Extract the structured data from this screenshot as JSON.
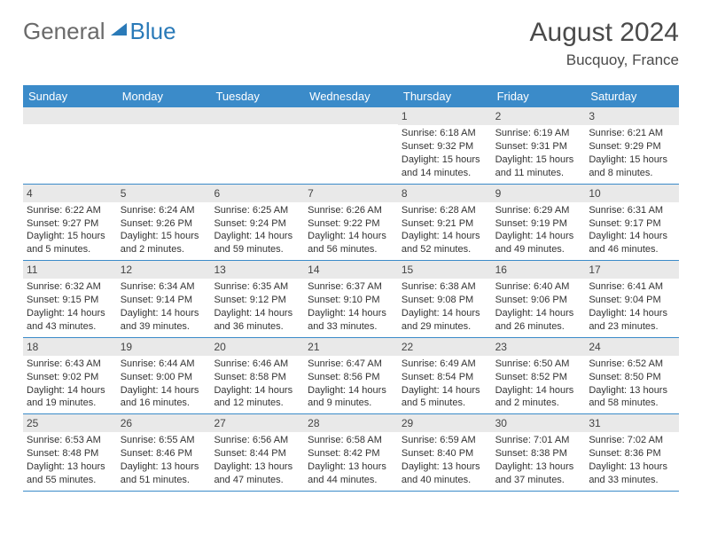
{
  "header": {
    "logo_part1": "General",
    "logo_part2": "Blue",
    "month_title": "August 2024",
    "location": "Bucquoy, France"
  },
  "colors": {
    "header_bar": "#3b8bc9",
    "daynum_bg": "#e9e9e9",
    "week_border": "#3b8bc9",
    "logo_gray": "#6a6a6a",
    "logo_blue": "#2a7ab8",
    "text": "#333333",
    "title": "#4a4a4a"
  },
  "typography": {
    "title_fontsize": 30,
    "location_fontsize": 17,
    "weekday_fontsize": 13,
    "daynum_fontsize": 12,
    "body_fontsize": 11
  },
  "weekdays": [
    "Sunday",
    "Monday",
    "Tuesday",
    "Wednesday",
    "Thursday",
    "Friday",
    "Saturday"
  ],
  "weeks": [
    [
      null,
      null,
      null,
      null,
      {
        "n": "1",
        "sunrise": "6:18 AM",
        "sunset": "9:32 PM",
        "daylight": "15 hours and 14 minutes."
      },
      {
        "n": "2",
        "sunrise": "6:19 AM",
        "sunset": "9:31 PM",
        "daylight": "15 hours and 11 minutes."
      },
      {
        "n": "3",
        "sunrise": "6:21 AM",
        "sunset": "9:29 PM",
        "daylight": "15 hours and 8 minutes."
      }
    ],
    [
      {
        "n": "4",
        "sunrise": "6:22 AM",
        "sunset": "9:27 PM",
        "daylight": "15 hours and 5 minutes."
      },
      {
        "n": "5",
        "sunrise": "6:24 AM",
        "sunset": "9:26 PM",
        "daylight": "15 hours and 2 minutes."
      },
      {
        "n": "6",
        "sunrise": "6:25 AM",
        "sunset": "9:24 PM",
        "daylight": "14 hours and 59 minutes."
      },
      {
        "n": "7",
        "sunrise": "6:26 AM",
        "sunset": "9:22 PM",
        "daylight": "14 hours and 56 minutes."
      },
      {
        "n": "8",
        "sunrise": "6:28 AM",
        "sunset": "9:21 PM",
        "daylight": "14 hours and 52 minutes."
      },
      {
        "n": "9",
        "sunrise": "6:29 AM",
        "sunset": "9:19 PM",
        "daylight": "14 hours and 49 minutes."
      },
      {
        "n": "10",
        "sunrise": "6:31 AM",
        "sunset": "9:17 PM",
        "daylight": "14 hours and 46 minutes."
      }
    ],
    [
      {
        "n": "11",
        "sunrise": "6:32 AM",
        "sunset": "9:15 PM",
        "daylight": "14 hours and 43 minutes."
      },
      {
        "n": "12",
        "sunrise": "6:34 AM",
        "sunset": "9:14 PM",
        "daylight": "14 hours and 39 minutes."
      },
      {
        "n": "13",
        "sunrise": "6:35 AM",
        "sunset": "9:12 PM",
        "daylight": "14 hours and 36 minutes."
      },
      {
        "n": "14",
        "sunrise": "6:37 AM",
        "sunset": "9:10 PM",
        "daylight": "14 hours and 33 minutes."
      },
      {
        "n": "15",
        "sunrise": "6:38 AM",
        "sunset": "9:08 PM",
        "daylight": "14 hours and 29 minutes."
      },
      {
        "n": "16",
        "sunrise": "6:40 AM",
        "sunset": "9:06 PM",
        "daylight": "14 hours and 26 minutes."
      },
      {
        "n": "17",
        "sunrise": "6:41 AM",
        "sunset": "9:04 PM",
        "daylight": "14 hours and 23 minutes."
      }
    ],
    [
      {
        "n": "18",
        "sunrise": "6:43 AM",
        "sunset": "9:02 PM",
        "daylight": "14 hours and 19 minutes."
      },
      {
        "n": "19",
        "sunrise": "6:44 AM",
        "sunset": "9:00 PM",
        "daylight": "14 hours and 16 minutes."
      },
      {
        "n": "20",
        "sunrise": "6:46 AM",
        "sunset": "8:58 PM",
        "daylight": "14 hours and 12 minutes."
      },
      {
        "n": "21",
        "sunrise": "6:47 AM",
        "sunset": "8:56 PM",
        "daylight": "14 hours and 9 minutes."
      },
      {
        "n": "22",
        "sunrise": "6:49 AM",
        "sunset": "8:54 PM",
        "daylight": "14 hours and 5 minutes."
      },
      {
        "n": "23",
        "sunrise": "6:50 AM",
        "sunset": "8:52 PM",
        "daylight": "14 hours and 2 minutes."
      },
      {
        "n": "24",
        "sunrise": "6:52 AM",
        "sunset": "8:50 PM",
        "daylight": "13 hours and 58 minutes."
      }
    ],
    [
      {
        "n": "25",
        "sunrise": "6:53 AM",
        "sunset": "8:48 PM",
        "daylight": "13 hours and 55 minutes."
      },
      {
        "n": "26",
        "sunrise": "6:55 AM",
        "sunset": "8:46 PM",
        "daylight": "13 hours and 51 minutes."
      },
      {
        "n": "27",
        "sunrise": "6:56 AM",
        "sunset": "8:44 PM",
        "daylight": "13 hours and 47 minutes."
      },
      {
        "n": "28",
        "sunrise": "6:58 AM",
        "sunset": "8:42 PM",
        "daylight": "13 hours and 44 minutes."
      },
      {
        "n": "29",
        "sunrise": "6:59 AM",
        "sunset": "8:40 PM",
        "daylight": "13 hours and 40 minutes."
      },
      {
        "n": "30",
        "sunrise": "7:01 AM",
        "sunset": "8:38 PM",
        "daylight": "13 hours and 37 minutes."
      },
      {
        "n": "31",
        "sunrise": "7:02 AM",
        "sunset": "8:36 PM",
        "daylight": "13 hours and 33 minutes."
      }
    ]
  ],
  "labels": {
    "sunrise": "Sunrise:",
    "sunset": "Sunset:",
    "daylight": "Daylight:"
  }
}
